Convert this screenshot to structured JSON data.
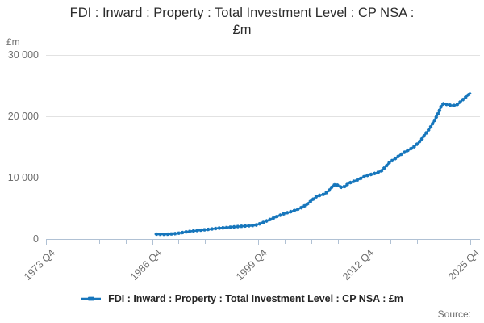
{
  "title": {
    "line1": "FDI : Inward : Property : Total Investment Level : CP NSA :",
    "line2": "£m",
    "full": "FDI : Inward : Property : Total Investment Level : CP NSA : £m"
  },
  "y_axis_unit_label": "£m",
  "source_label": "Source:",
  "legend": {
    "label": "FDI : Inward : Property : Total Investment Level : CP NSA : £m",
    "marker": "line-with-dash-marker"
  },
  "colors": {
    "line": "#1676bc",
    "grid": "#e2e2e2",
    "axis": "#b0c1d4",
    "title_text": "#2b2b2b",
    "muted_text": "#6e6e6e",
    "background": "#ffffff"
  },
  "chart_data": {
    "type": "line",
    "title": "FDI : Inward : Property : Total Investment Level : CP NSA : £m",
    "unit": "£m",
    "frequency": "quarterly",
    "grid": "horizontal-only",
    "legend_position": "bottom-center",
    "xlim": [
      1973.875,
      2025.875
    ],
    "ylim": [
      0,
      30000
    ],
    "x_tick_labels": [
      "1973 Q4",
      "1986 Q4",
      "1999 Q4",
      "2012 Q4",
      "2025 Q4"
    ],
    "x_tick_values": [
      1973.875,
      1986.875,
      1999.875,
      2012.875,
      2025.875
    ],
    "x_minor_ticks_between_majors": 3,
    "y_tick_labels": [
      "0",
      "10 000",
      "20 000",
      "30 000"
    ],
    "y_tick_values": [
      0,
      10000,
      20000,
      30000
    ],
    "series": [
      {
        "name": "FDI : Inward : Property : Total Investment Level : CP NSA : £m",
        "color": "#1676bc",
        "points": [
          [
            1987.3,
            800
          ],
          [
            1987.6,
            780
          ],
          [
            1988,
            770
          ],
          [
            1988.5,
            760
          ],
          [
            1989,
            800
          ],
          [
            1989.5,
            840
          ],
          [
            1990,
            920
          ],
          [
            1990.5,
            1020
          ],
          [
            1991,
            1150
          ],
          [
            1991.5,
            1240
          ],
          [
            1992,
            1320
          ],
          [
            1992.5,
            1390
          ],
          [
            1993,
            1460
          ],
          [
            1993.5,
            1530
          ],
          [
            1994,
            1610
          ],
          [
            1994.5,
            1680
          ],
          [
            1995,
            1760
          ],
          [
            1995.5,
            1810
          ],
          [
            1996,
            1870
          ],
          [
            1996.5,
            1930
          ],
          [
            1997,
            1990
          ],
          [
            1997.5,
            2040
          ],
          [
            1998,
            2090
          ],
          [
            1998.5,
            2140
          ],
          [
            1999,
            2190
          ],
          [
            1999.5,
            2240
          ],
          [
            2000,
            2450
          ],
          [
            2000.5,
            2700
          ],
          [
            2001,
            3000
          ],
          [
            2001.5,
            3280
          ],
          [
            2002,
            3560
          ],
          [
            2002.5,
            3840
          ],
          [
            2003,
            4100
          ],
          [
            2003.5,
            4310
          ],
          [
            2004,
            4510
          ],
          [
            2004.5,
            4730
          ],
          [
            2005,
            5010
          ],
          [
            2005.5,
            5360
          ],
          [
            2006,
            5810
          ],
          [
            2006.5,
            6360
          ],
          [
            2007,
            6900
          ],
          [
            2007.5,
            7150
          ],
          [
            2008,
            7310
          ],
          [
            2008.5,
            7810
          ],
          [
            2009,
            8620
          ],
          [
            2009.4,
            8950
          ],
          [
            2009.8,
            8610
          ],
          [
            2010.1,
            8420
          ],
          [
            2010.5,
            8560
          ],
          [
            2011,
            9110
          ],
          [
            2011.5,
            9360
          ],
          [
            2012,
            9610
          ],
          [
            2012.5,
            9910
          ],
          [
            2013,
            10260
          ],
          [
            2013.5,
            10460
          ],
          [
            2014,
            10620
          ],
          [
            2014.5,
            10830
          ],
          [
            2015,
            11120
          ],
          [
            2015.5,
            11790
          ],
          [
            2016,
            12510
          ],
          [
            2016.5,
            12960
          ],
          [
            2017,
            13420
          ],
          [
            2017.5,
            13880
          ],
          [
            2018,
            14300
          ],
          [
            2018.5,
            14650
          ],
          [
            2019,
            15060
          ],
          [
            2019.5,
            15650
          ],
          [
            2020,
            16420
          ],
          [
            2020.5,
            17310
          ],
          [
            2021,
            18230
          ],
          [
            2021.5,
            19340
          ],
          [
            2022,
            20620
          ],
          [
            2022.3,
            21620
          ],
          [
            2022.6,
            22060
          ],
          [
            2023,
            21930
          ],
          [
            2023.5,
            21790
          ],
          [
            2024,
            21760
          ],
          [
            2024.4,
            22010
          ],
          [
            2024.8,
            22520
          ],
          [
            2025.3,
            23120
          ],
          [
            2025.875,
            23720
          ]
        ]
      }
    ]
  }
}
